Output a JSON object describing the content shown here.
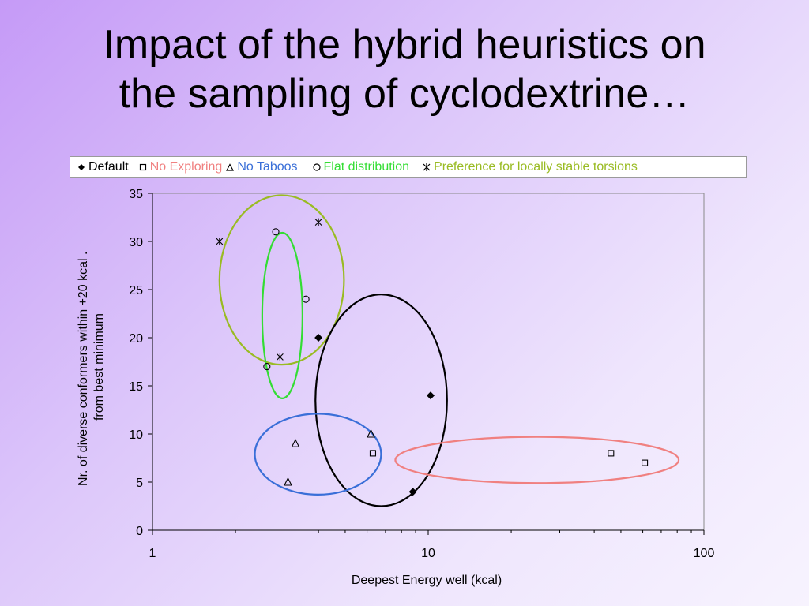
{
  "slide": {
    "title_lines": [
      "Impact of the hybrid heuristics on",
      "the sampling of cyclodextrine…"
    ]
  },
  "colors": {
    "default": "#000000",
    "no_exploring": "#f08080",
    "no_taboos": "#3a6fd8",
    "flat_distribution": "#33dd33",
    "preference": "#99bb22"
  },
  "chart_data": {
    "type": "scatter",
    "x_scale": "log",
    "xlim": [
      1,
      100
    ],
    "ylim": [
      0,
      35
    ],
    "x_ticks": [
      "1",
      "10",
      "100"
    ],
    "y_ticks": [
      "0",
      "5",
      "10",
      "15",
      "20",
      "25",
      "30",
      "35"
    ],
    "xlabel": "Deepest Energy well (kcal)",
    "ylabel_lines": [
      "Nr. of diverse conformers within +20 kcal .",
      "from best minimum"
    ],
    "grid": false,
    "legend_position": "top",
    "series": [
      {
        "name": "Default",
        "marker": "diamond-filled",
        "color": "#000000",
        "points": [
          [
            4.0,
            20
          ],
          [
            10.2,
            14
          ],
          [
            8.8,
            4
          ]
        ]
      },
      {
        "name": "No Exploring",
        "marker": "square-open",
        "color": "#000000",
        "legend_color": "#f08080",
        "points": [
          [
            6.3,
            8
          ],
          [
            46,
            8
          ],
          [
            61,
            7
          ]
        ]
      },
      {
        "name": "No Taboos",
        "marker": "triangle-open",
        "color": "#000000",
        "legend_color": "#3a6fd8",
        "points": [
          [
            6.2,
            10
          ],
          [
            3.3,
            9
          ],
          [
            3.1,
            5
          ]
        ]
      },
      {
        "name": "Flat distribution",
        "marker": "circle-open",
        "color": "#000000",
        "legend_color": "#33dd33",
        "points": [
          [
            2.8,
            31
          ],
          [
            3.6,
            24
          ],
          [
            2.6,
            17
          ]
        ]
      },
      {
        "name": "Preference for locally stable torsions",
        "marker": "asterisk",
        "color": "#000000",
        "legend_color": "#99bb22",
        "points": [
          [
            1.75,
            30
          ],
          [
            4.0,
            32
          ],
          [
            2.9,
            18
          ]
        ]
      }
    ],
    "ellipses": [
      {
        "group": "Preference for locally stable torsions",
        "color": "#99bb22",
        "center": [
          2.95,
          26
        ],
        "x_range": [
          1.75,
          4.95
        ],
        "y_half": 8.8
      },
      {
        "group": "Flat distribution",
        "color": "#33dd33",
        "center": [
          2.95,
          22.3
        ],
        "x_range": [
          2.5,
          3.5
        ],
        "y_half": 8.6
      },
      {
        "group": "Default",
        "color": "#000000",
        "center": [
          6.75,
          13.5
        ],
        "x_range": [
          3.9,
          11.7
        ],
        "y_half": 11.0
      },
      {
        "group": "No Taboos",
        "color": "#3a6fd8",
        "center": [
          4.0,
          7.9
        ],
        "x_range": [
          2.35,
          6.75
        ],
        "y_half": 4.2
      },
      {
        "group": "No Exploring",
        "color": "#f08080",
        "center": [
          18.5,
          7.3
        ],
        "x_range": [
          7.6,
          81
        ],
        "y_half": 2.4
      }
    ]
  }
}
